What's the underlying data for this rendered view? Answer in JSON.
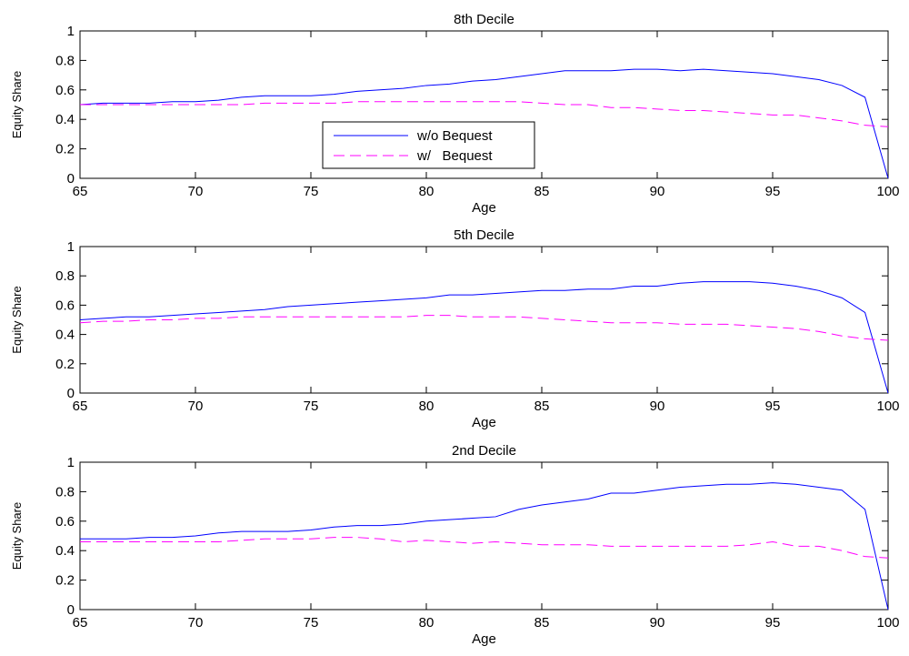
{
  "chart_data": [
    {
      "type": "line",
      "title": "8th Decile",
      "xlabel": "Age",
      "ylabel": "Equity Share",
      "xlim": [
        65,
        100
      ],
      "ylim": [
        0,
        1
      ],
      "xticks": [
        65,
        70,
        75,
        80,
        85,
        90,
        95,
        100
      ],
      "yticks": [
        0,
        0.2,
        0.4,
        0.6,
        0.8,
        1
      ],
      "ytick_labels": [
        "0",
        "0.2",
        "0.4",
        "0.6",
        "0.8",
        "1"
      ],
      "x": [
        65,
        66,
        67,
        68,
        69,
        70,
        71,
        72,
        73,
        74,
        75,
        76,
        77,
        78,
        79,
        80,
        81,
        82,
        83,
        84,
        85,
        86,
        87,
        88,
        89,
        90,
        91,
        92,
        93,
        94,
        95,
        96,
        97,
        98,
        99,
        100
      ],
      "series": [
        {
          "name": "w/o Bequest",
          "color": "#0000ff",
          "dash": "solid",
          "values": [
            0.5,
            0.51,
            0.51,
            0.51,
            0.52,
            0.52,
            0.53,
            0.55,
            0.56,
            0.56,
            0.56,
            0.57,
            0.59,
            0.6,
            0.61,
            0.63,
            0.64,
            0.66,
            0.67,
            0.69,
            0.71,
            0.73,
            0.73,
            0.73,
            0.74,
            0.74,
            0.73,
            0.74,
            0.73,
            0.72,
            0.71,
            0.69,
            0.67,
            0.63,
            0.55,
            0.0
          ]
        },
        {
          "name": "w/   Bequest",
          "color": "#ff00ff",
          "dash": "dashed",
          "values": [
            0.5,
            0.5,
            0.5,
            0.5,
            0.5,
            0.5,
            0.5,
            0.5,
            0.51,
            0.51,
            0.51,
            0.51,
            0.52,
            0.52,
            0.52,
            0.52,
            0.52,
            0.52,
            0.52,
            0.52,
            0.51,
            0.5,
            0.5,
            0.48,
            0.48,
            0.47,
            0.46,
            0.46,
            0.45,
            0.44,
            0.43,
            0.43,
            0.41,
            0.39,
            0.36,
            0.35
          ]
        }
      ],
      "legend": "inside-lower-center",
      "grid": false
    },
    {
      "type": "line",
      "title": "5th Decile",
      "xlabel": "Age",
      "ylabel": "Equity Share",
      "xlim": [
        65,
        100
      ],
      "ylim": [
        0,
        1
      ],
      "xticks": [
        65,
        70,
        75,
        80,
        85,
        90,
        95,
        100
      ],
      "yticks": [
        0,
        0.2,
        0.4,
        0.6,
        0.8,
        1
      ],
      "ytick_labels": [
        "0",
        "0.2",
        "0.4",
        "0.6",
        "0.8",
        "1"
      ],
      "x": [
        65,
        66,
        67,
        68,
        69,
        70,
        71,
        72,
        73,
        74,
        75,
        76,
        77,
        78,
        79,
        80,
        81,
        82,
        83,
        84,
        85,
        86,
        87,
        88,
        89,
        90,
        91,
        92,
        93,
        94,
        95,
        96,
        97,
        98,
        99,
        100
      ],
      "series": [
        {
          "name": "w/o Bequest",
          "color": "#0000ff",
          "dash": "solid",
          "values": [
            0.5,
            0.51,
            0.52,
            0.52,
            0.53,
            0.54,
            0.55,
            0.56,
            0.57,
            0.59,
            0.6,
            0.61,
            0.62,
            0.63,
            0.64,
            0.65,
            0.67,
            0.67,
            0.68,
            0.69,
            0.7,
            0.7,
            0.71,
            0.71,
            0.73,
            0.73,
            0.75,
            0.76,
            0.76,
            0.76,
            0.75,
            0.73,
            0.7,
            0.65,
            0.55,
            0.0
          ]
        },
        {
          "name": "w/   Bequest",
          "color": "#ff00ff",
          "dash": "dashed",
          "values": [
            0.48,
            0.49,
            0.49,
            0.5,
            0.5,
            0.51,
            0.51,
            0.52,
            0.52,
            0.52,
            0.52,
            0.52,
            0.52,
            0.52,
            0.52,
            0.53,
            0.53,
            0.52,
            0.52,
            0.52,
            0.51,
            0.5,
            0.49,
            0.48,
            0.48,
            0.48,
            0.47,
            0.47,
            0.47,
            0.46,
            0.45,
            0.44,
            0.42,
            0.39,
            0.37,
            0.36
          ]
        }
      ],
      "grid": false
    },
    {
      "type": "line",
      "title": "2nd Decile",
      "xlabel": "Age",
      "ylabel": "Equity Share",
      "xlim": [
        65,
        100
      ],
      "ylim": [
        0,
        1
      ],
      "xticks": [
        65,
        70,
        75,
        80,
        85,
        90,
        95,
        100
      ],
      "yticks": [
        0,
        0.2,
        0.4,
        0.6,
        0.8,
        1
      ],
      "ytick_labels": [
        "0",
        "0.2",
        "0.4",
        "0.6",
        "0.8",
        "1"
      ],
      "x": [
        65,
        66,
        67,
        68,
        69,
        70,
        71,
        72,
        73,
        74,
        75,
        76,
        77,
        78,
        79,
        80,
        81,
        82,
        83,
        84,
        85,
        86,
        87,
        88,
        89,
        90,
        91,
        92,
        93,
        94,
        95,
        96,
        97,
        98,
        99,
        100
      ],
      "series": [
        {
          "name": "w/o Bequest",
          "color": "#0000ff",
          "dash": "solid",
          "values": [
            0.48,
            0.48,
            0.48,
            0.49,
            0.49,
            0.5,
            0.52,
            0.53,
            0.53,
            0.53,
            0.54,
            0.56,
            0.57,
            0.57,
            0.58,
            0.6,
            0.61,
            0.62,
            0.63,
            0.68,
            0.71,
            0.73,
            0.75,
            0.79,
            0.79,
            0.81,
            0.83,
            0.84,
            0.85,
            0.85,
            0.86,
            0.85,
            0.83,
            0.81,
            0.68,
            0.0
          ]
        },
        {
          "name": "w/   Bequest",
          "color": "#ff00ff",
          "dash": "dashed",
          "values": [
            0.46,
            0.46,
            0.46,
            0.46,
            0.46,
            0.46,
            0.46,
            0.47,
            0.48,
            0.48,
            0.48,
            0.49,
            0.49,
            0.48,
            0.46,
            0.47,
            0.46,
            0.45,
            0.46,
            0.45,
            0.44,
            0.44,
            0.44,
            0.43,
            0.43,
            0.43,
            0.43,
            0.43,
            0.43,
            0.44,
            0.46,
            0.43,
            0.43,
            0.4,
            0.36,
            0.35
          ]
        }
      ],
      "grid": false
    }
  ]
}
